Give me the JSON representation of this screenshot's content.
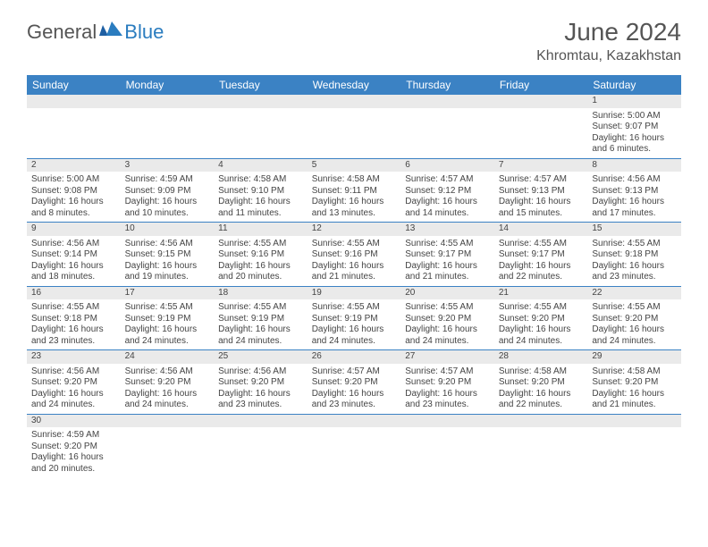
{
  "logo": {
    "general": "General",
    "blue": "Blue"
  },
  "title": "June 2024",
  "location": "Khromtau, Kazakhstan",
  "colors": {
    "header_bg": "#3b82c4",
    "header_text": "#ffffff",
    "border": "#3b82c4",
    "num_strip_bg": "#eaeaea",
    "text": "#444444",
    "logo_blue": "#2a7cbf"
  },
  "days": [
    "Sunday",
    "Monday",
    "Tuesday",
    "Wednesday",
    "Thursday",
    "Friday",
    "Saturday"
  ],
  "weeks": [
    [
      null,
      null,
      null,
      null,
      null,
      null,
      {
        "n": "1",
        "sr": "Sunrise: 5:00 AM",
        "ss": "Sunset: 9:07 PM",
        "dl1": "Daylight: 16 hours",
        "dl2": "and 6 minutes."
      }
    ],
    [
      {
        "n": "2",
        "sr": "Sunrise: 5:00 AM",
        "ss": "Sunset: 9:08 PM",
        "dl1": "Daylight: 16 hours",
        "dl2": "and 8 minutes."
      },
      {
        "n": "3",
        "sr": "Sunrise: 4:59 AM",
        "ss": "Sunset: 9:09 PM",
        "dl1": "Daylight: 16 hours",
        "dl2": "and 10 minutes."
      },
      {
        "n": "4",
        "sr": "Sunrise: 4:58 AM",
        "ss": "Sunset: 9:10 PM",
        "dl1": "Daylight: 16 hours",
        "dl2": "and 11 minutes."
      },
      {
        "n": "5",
        "sr": "Sunrise: 4:58 AM",
        "ss": "Sunset: 9:11 PM",
        "dl1": "Daylight: 16 hours",
        "dl2": "and 13 minutes."
      },
      {
        "n": "6",
        "sr": "Sunrise: 4:57 AM",
        "ss": "Sunset: 9:12 PM",
        "dl1": "Daylight: 16 hours",
        "dl2": "and 14 minutes."
      },
      {
        "n": "7",
        "sr": "Sunrise: 4:57 AM",
        "ss": "Sunset: 9:13 PM",
        "dl1": "Daylight: 16 hours",
        "dl2": "and 15 minutes."
      },
      {
        "n": "8",
        "sr": "Sunrise: 4:56 AM",
        "ss": "Sunset: 9:13 PM",
        "dl1": "Daylight: 16 hours",
        "dl2": "and 17 minutes."
      }
    ],
    [
      {
        "n": "9",
        "sr": "Sunrise: 4:56 AM",
        "ss": "Sunset: 9:14 PM",
        "dl1": "Daylight: 16 hours",
        "dl2": "and 18 minutes."
      },
      {
        "n": "10",
        "sr": "Sunrise: 4:56 AM",
        "ss": "Sunset: 9:15 PM",
        "dl1": "Daylight: 16 hours",
        "dl2": "and 19 minutes."
      },
      {
        "n": "11",
        "sr": "Sunrise: 4:55 AM",
        "ss": "Sunset: 9:16 PM",
        "dl1": "Daylight: 16 hours",
        "dl2": "and 20 minutes."
      },
      {
        "n": "12",
        "sr": "Sunrise: 4:55 AM",
        "ss": "Sunset: 9:16 PM",
        "dl1": "Daylight: 16 hours",
        "dl2": "and 21 minutes."
      },
      {
        "n": "13",
        "sr": "Sunrise: 4:55 AM",
        "ss": "Sunset: 9:17 PM",
        "dl1": "Daylight: 16 hours",
        "dl2": "and 21 minutes."
      },
      {
        "n": "14",
        "sr": "Sunrise: 4:55 AM",
        "ss": "Sunset: 9:17 PM",
        "dl1": "Daylight: 16 hours",
        "dl2": "and 22 minutes."
      },
      {
        "n": "15",
        "sr": "Sunrise: 4:55 AM",
        "ss": "Sunset: 9:18 PM",
        "dl1": "Daylight: 16 hours",
        "dl2": "and 23 minutes."
      }
    ],
    [
      {
        "n": "16",
        "sr": "Sunrise: 4:55 AM",
        "ss": "Sunset: 9:18 PM",
        "dl1": "Daylight: 16 hours",
        "dl2": "and 23 minutes."
      },
      {
        "n": "17",
        "sr": "Sunrise: 4:55 AM",
        "ss": "Sunset: 9:19 PM",
        "dl1": "Daylight: 16 hours",
        "dl2": "and 24 minutes."
      },
      {
        "n": "18",
        "sr": "Sunrise: 4:55 AM",
        "ss": "Sunset: 9:19 PM",
        "dl1": "Daylight: 16 hours",
        "dl2": "and 24 minutes."
      },
      {
        "n": "19",
        "sr": "Sunrise: 4:55 AM",
        "ss": "Sunset: 9:19 PM",
        "dl1": "Daylight: 16 hours",
        "dl2": "and 24 minutes."
      },
      {
        "n": "20",
        "sr": "Sunrise: 4:55 AM",
        "ss": "Sunset: 9:20 PM",
        "dl1": "Daylight: 16 hours",
        "dl2": "and 24 minutes."
      },
      {
        "n": "21",
        "sr": "Sunrise: 4:55 AM",
        "ss": "Sunset: 9:20 PM",
        "dl1": "Daylight: 16 hours",
        "dl2": "and 24 minutes."
      },
      {
        "n": "22",
        "sr": "Sunrise: 4:55 AM",
        "ss": "Sunset: 9:20 PM",
        "dl1": "Daylight: 16 hours",
        "dl2": "and 24 minutes."
      }
    ],
    [
      {
        "n": "23",
        "sr": "Sunrise: 4:56 AM",
        "ss": "Sunset: 9:20 PM",
        "dl1": "Daylight: 16 hours",
        "dl2": "and 24 minutes."
      },
      {
        "n": "24",
        "sr": "Sunrise: 4:56 AM",
        "ss": "Sunset: 9:20 PM",
        "dl1": "Daylight: 16 hours",
        "dl2": "and 24 minutes."
      },
      {
        "n": "25",
        "sr": "Sunrise: 4:56 AM",
        "ss": "Sunset: 9:20 PM",
        "dl1": "Daylight: 16 hours",
        "dl2": "and 23 minutes."
      },
      {
        "n": "26",
        "sr": "Sunrise: 4:57 AM",
        "ss": "Sunset: 9:20 PM",
        "dl1": "Daylight: 16 hours",
        "dl2": "and 23 minutes."
      },
      {
        "n": "27",
        "sr": "Sunrise: 4:57 AM",
        "ss": "Sunset: 9:20 PM",
        "dl1": "Daylight: 16 hours",
        "dl2": "and 23 minutes."
      },
      {
        "n": "28",
        "sr": "Sunrise: 4:58 AM",
        "ss": "Sunset: 9:20 PM",
        "dl1": "Daylight: 16 hours",
        "dl2": "and 22 minutes."
      },
      {
        "n": "29",
        "sr": "Sunrise: 4:58 AM",
        "ss": "Sunset: 9:20 PM",
        "dl1": "Daylight: 16 hours",
        "dl2": "and 21 minutes."
      }
    ],
    [
      {
        "n": "30",
        "sr": "Sunrise: 4:59 AM",
        "ss": "Sunset: 9:20 PM",
        "dl1": "Daylight: 16 hours",
        "dl2": "and 20 minutes."
      },
      null,
      null,
      null,
      null,
      null,
      null
    ]
  ]
}
